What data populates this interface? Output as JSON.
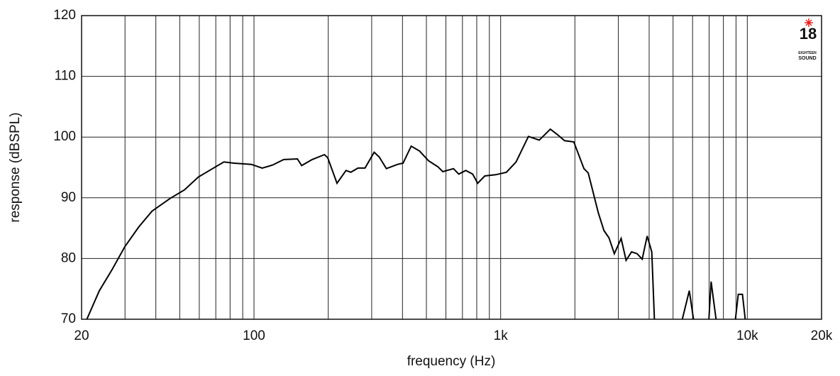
{
  "chart_data": {
    "type": "line",
    "xlabel": "frequency (Hz)",
    "ylabel": "response (dBSPL)",
    "xscale": "log",
    "color": "#000000",
    "grid": true,
    "x": [
      21,
      23.6,
      26.6,
      29.9,
      34.1,
      38.6,
      45.7,
      52.2,
      59.4,
      67.9,
      75.5,
      83,
      97.6,
      108,
      119,
      132,
      150,
      156,
      172,
      193,
      199,
      217,
      236,
      247,
      264,
      282,
      307,
      322,
      344,
      382,
      402,
      434,
      469,
      510,
      557,
      583,
      644,
      676,
      722,
      770,
      807,
      863,
      954,
      1055,
      1155,
      1296,
      1434,
      1590,
      1700,
      1815,
      1980,
      2176,
      2265,
      2490,
      2623,
      2750,
      2890,
      3080,
      3225,
      3395,
      3575,
      3750,
      3926,
      4100,
      4200,
      null,
      5450,
      5820,
      6050,
      null,
      6985,
      7130,
      7470,
      null,
      8950,
      9190,
      9560,
      9810
    ],
    "values": [
      70,
      74.7,
      78.2,
      81.9,
      85.2,
      87.8,
      89.9,
      91.3,
      93.4,
      94.8,
      95.9,
      95.7,
      95.5,
      94.9,
      95.4,
      96.3,
      96.4,
      95.3,
      96.3,
      97.1,
      96.6,
      92.4,
      94.5,
      94.2,
      94.9,
      94.9,
      97.5,
      96.7,
      94.8,
      95.5,
      95.7,
      98.5,
      97.7,
      96.1,
      95.1,
      94.3,
      94.8,
      93.9,
      94.5,
      93.9,
      92.4,
      93.6,
      93.8,
      94.2,
      95.9,
      100.1,
      99.5,
      101.3,
      100.4,
      99.4,
      99.2,
      94.8,
      94.1,
      87.5,
      84.6,
      83.4,
      80.8,
      83.3,
      79.7,
      81.1,
      80.8,
      79.9,
      83.7,
      81.1,
      70,
      null,
      70,
      74.7,
      70,
      null,
      70,
      76.2,
      70,
      null,
      70,
      74.1,
      74.1,
      70
    ],
    "xlim": [
      20,
      20000
    ],
    "ylim": [
      70,
      120
    ],
    "xticks": [
      20,
      100,
      {
        "value": 1000,
        "label": "1k"
      },
      {
        "value": 10000,
        "label": "10k"
      },
      {
        "value": 20000,
        "label": "20k"
      }
    ],
    "xgrid": [
      30,
      40,
      50,
      60,
      70,
      80,
      90,
      200,
      300,
      400,
      500,
      600,
      700,
      800,
      900,
      2000,
      3000,
      4000,
      5000,
      6000,
      7000,
      8000,
      9000
    ],
    "yticks": [
      70,
      80,
      90,
      100,
      110,
      120
    ]
  },
  "logo": {
    "number": "18",
    "line1": "EIGHTEEN",
    "line2": "SOUND"
  }
}
